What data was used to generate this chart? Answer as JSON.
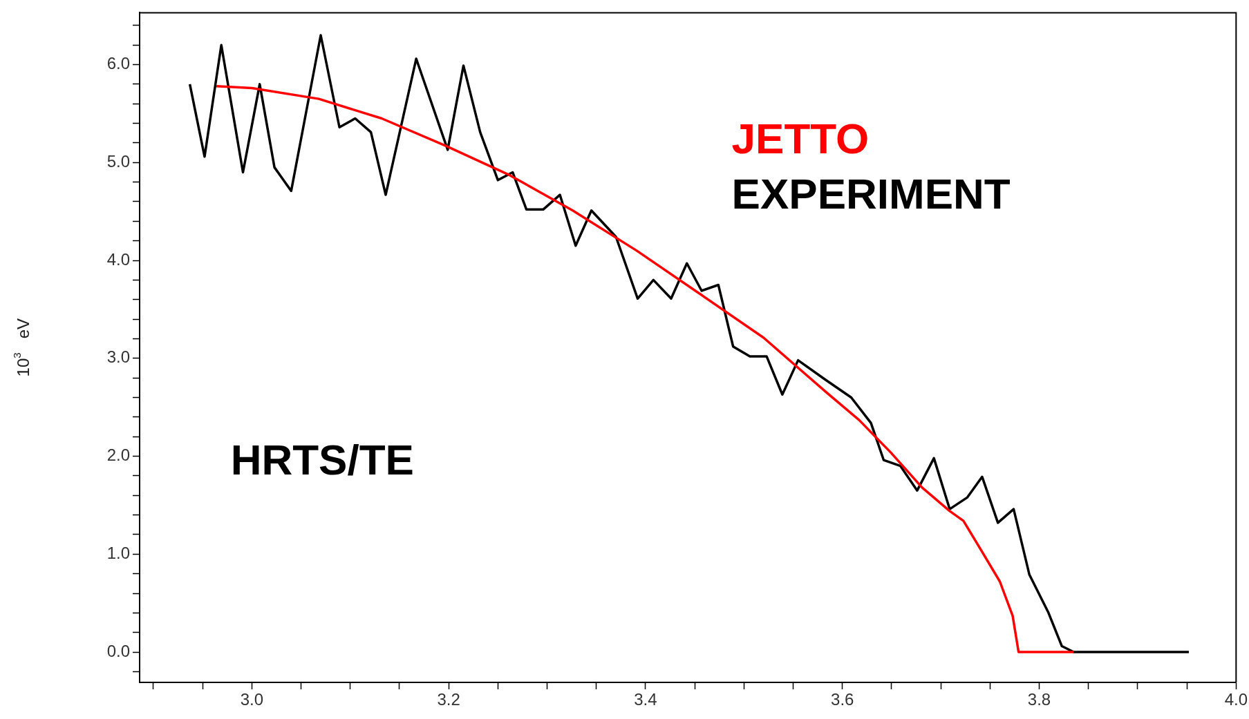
{
  "chart_data": {
    "type": "line",
    "ylabel": "10$^{3}$ eV",
    "annotations": [
      "HRTS/TE"
    ],
    "legend": "top right",
    "grid": false,
    "marker": "none",
    "line_style": "solid",
    "xlim": [
      2.886,
      4.0
    ],
    "ylim": [
      -0.31,
      6.53
    ],
    "xticks": [
      {
        "value": 2.9,
        "label": null
      },
      {
        "value": 2.95,
        "label": null
      },
      {
        "value": 3.0,
        "label": "3.0"
      },
      {
        "value": 3.05,
        "label": null
      },
      {
        "value": 3.1,
        "label": null
      },
      {
        "value": 3.15,
        "label": null
      },
      {
        "value": 3.2,
        "label": "3.2"
      },
      {
        "value": 3.25,
        "label": null
      },
      {
        "value": 3.3,
        "label": null
      },
      {
        "value": 3.35,
        "label": null
      },
      {
        "value": 3.4,
        "label": "3.4"
      },
      {
        "value": 3.45,
        "label": null
      },
      {
        "value": 3.5,
        "label": null
      },
      {
        "value": 3.55,
        "label": null
      },
      {
        "value": 3.6,
        "label": "3.6"
      },
      {
        "value": 3.65,
        "label": null
      },
      {
        "value": 3.7,
        "label": null
      },
      {
        "value": 3.75,
        "label": null
      },
      {
        "value": 3.8,
        "label": "3.8"
      },
      {
        "value": 3.85,
        "label": null
      },
      {
        "value": 3.9,
        "label": null
      },
      {
        "value": 3.95,
        "label": null
      },
      {
        "value": 4.0,
        "label": "4.0"
      }
    ],
    "yticks": [
      {
        "value": -0.2,
        "label": null
      },
      {
        "value": 0,
        "label": "0.0"
      },
      {
        "value": 0.2,
        "label": null
      },
      {
        "value": 0.4,
        "label": null
      },
      {
        "value": 0.6,
        "label": null
      },
      {
        "value": 0.8,
        "label": null
      },
      {
        "value": 1,
        "label": "1.0"
      },
      {
        "value": 1.2,
        "label": null
      },
      {
        "value": 1.4,
        "label": null
      },
      {
        "value": 1.6,
        "label": null
      },
      {
        "value": 1.8,
        "label": null
      },
      {
        "value": 2,
        "label": "2.0"
      },
      {
        "value": 2.2,
        "label": null
      },
      {
        "value": 2.4,
        "label": null
      },
      {
        "value": 2.6,
        "label": null
      },
      {
        "value": 2.8,
        "label": null
      },
      {
        "value": 3,
        "label": "3.0"
      },
      {
        "value": 3.2,
        "label": null
      },
      {
        "value": 3.4,
        "label": null
      },
      {
        "value": 3.6,
        "label": null
      },
      {
        "value": 3.8,
        "label": null
      },
      {
        "value": 4,
        "label": "4.0"
      },
      {
        "value": 4.2,
        "label": null
      },
      {
        "value": 4.4,
        "label": null
      },
      {
        "value": 4.6,
        "label": null
      },
      {
        "value": 4.8,
        "label": null
      },
      {
        "value": 5,
        "label": "5.0"
      },
      {
        "value": 5.2,
        "label": null
      },
      {
        "value": 5.4,
        "label": null
      },
      {
        "value": 5.6,
        "label": null
      },
      {
        "value": 5.8,
        "label": null
      },
      {
        "value": 6,
        "label": "6.0"
      },
      {
        "value": 6.2,
        "label": null
      },
      {
        "value": 6.4,
        "label": null
      }
    ],
    "series": [
      {
        "name": "JETTO",
        "color": "#ff0000",
        "x": [
          2.964,
          3.0,
          3.068,
          3.132,
          3.197,
          3.262,
          3.326,
          3.391,
          3.455,
          3.52,
          3.552,
          3.584,
          3.617,
          3.649,
          3.681,
          3.709,
          3.723,
          3.741,
          3.76,
          3.773,
          3.779,
          3.835
        ],
        "values": [
          5.78,
          5.76,
          5.65,
          5.45,
          5.17,
          4.87,
          4.51,
          4.1,
          3.66,
          3.21,
          2.93,
          2.65,
          2.37,
          2.04,
          1.68,
          1.44,
          1.34,
          1.04,
          0.72,
          0.37,
          0,
          0
        ]
      },
      {
        "name": "EXPERIMENT",
        "color": "#000000",
        "x": [
          2.937,
          2.952,
          2.969,
          2.991,
          3.008,
          3.023,
          3.04,
          3.07,
          3.089,
          3.105,
          3.121,
          3.136,
          3.167,
          3.199,
          3.215,
          3.232,
          3.25,
          3.265,
          3.279,
          3.296,
          3.313,
          3.329,
          3.345,
          3.37,
          3.392,
          3.408,
          3.426,
          3.442,
          3.457,
          3.474,
          3.489,
          3.506,
          3.523,
          3.539,
          3.555,
          3.583,
          3.609,
          3.629,
          3.642,
          3.659,
          3.676,
          3.693,
          3.709,
          3.727,
          3.742,
          3.758,
          3.774,
          3.79,
          3.809,
          3.823,
          3.835,
          3.952
        ],
        "values": [
          5.8,
          5.06,
          6.2,
          4.9,
          5.8,
          4.95,
          4.71,
          6.3,
          5.36,
          5.45,
          5.31,
          4.67,
          6.06,
          5.13,
          5.99,
          5.31,
          4.82,
          4.9,
          4.52,
          4.52,
          4.67,
          4.15,
          4.51,
          4.24,
          3.61,
          3.8,
          3.61,
          3.97,
          3.69,
          3.75,
          3.12,
          3.02,
          3.02,
          2.63,
          2.98,
          2.78,
          2.6,
          2.34,
          1.96,
          1.9,
          1.65,
          1.98,
          1.46,
          1.58,
          1.79,
          1.32,
          1.46,
          0.79,
          0.41,
          0.06,
          0,
          0
        ]
      }
    ]
  }
}
